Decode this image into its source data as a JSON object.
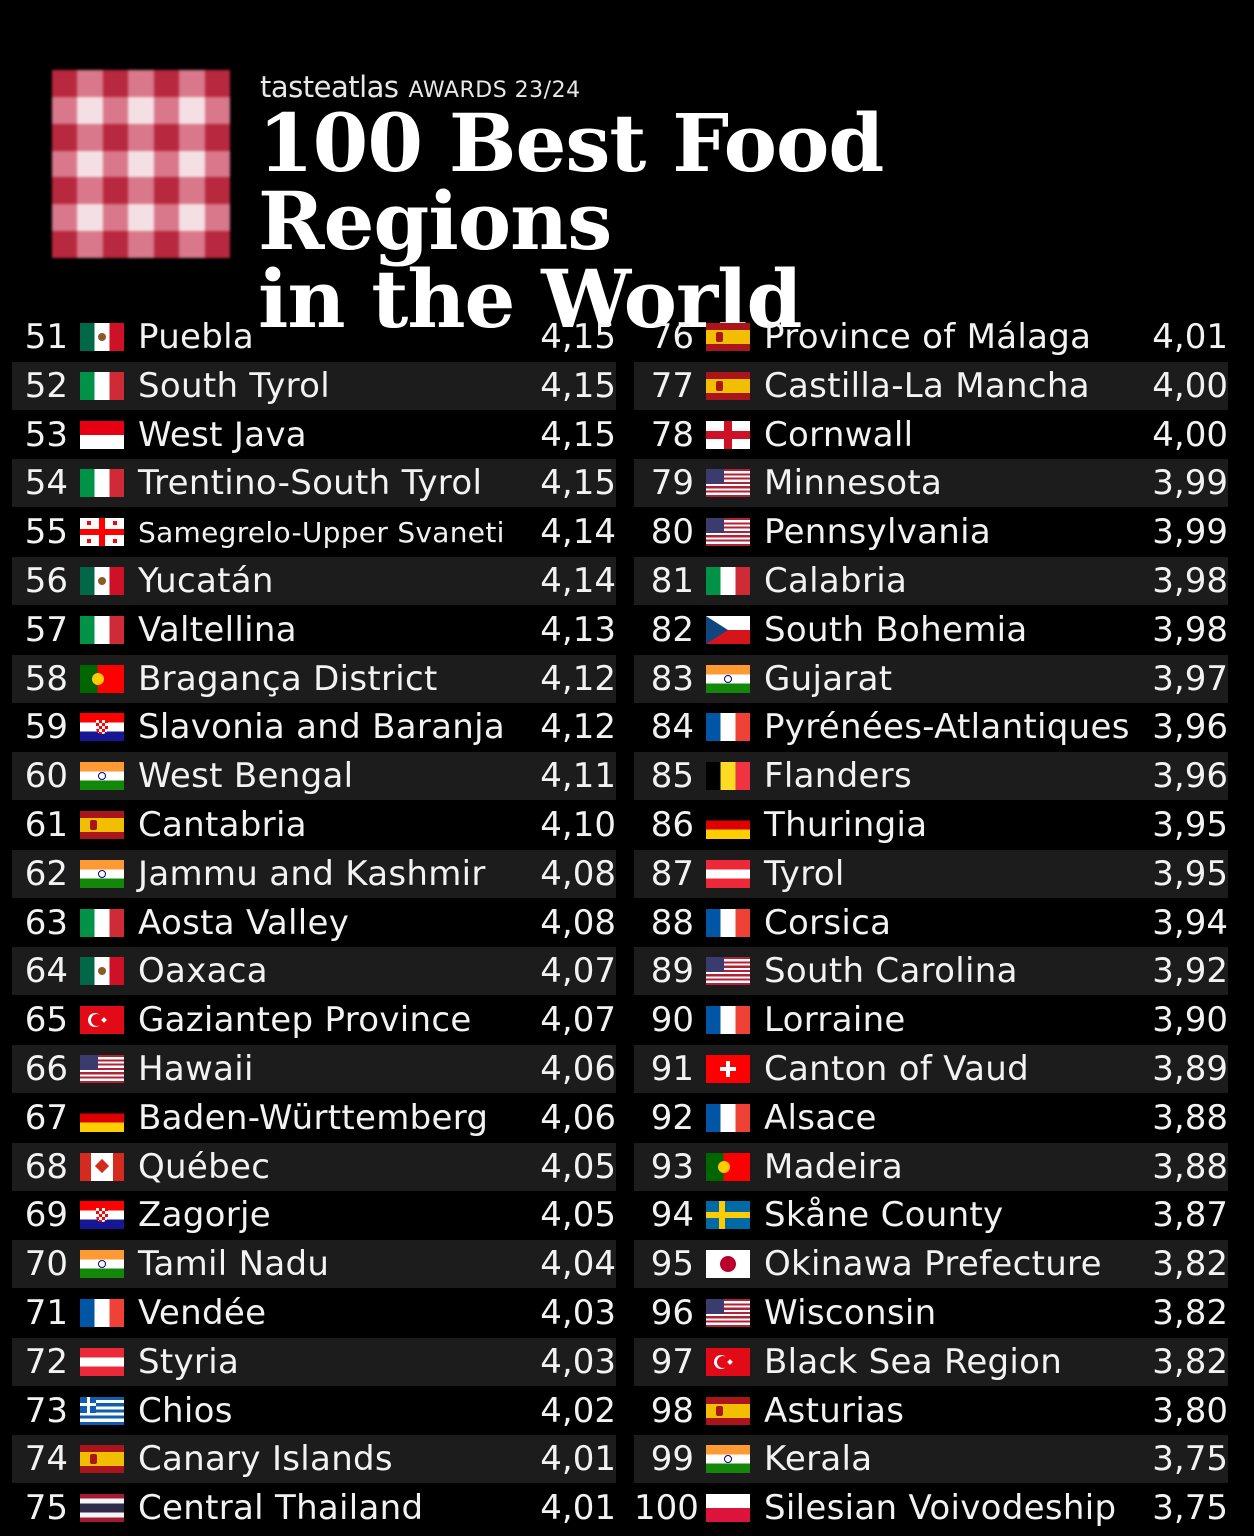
{
  "header": {
    "brand": "tasteatlas",
    "awards": "AWARDS 23/24",
    "title_line1": "100 Best Food Regions",
    "title_line2": "in the World"
  },
  "rankings": [
    {
      "rank": "51",
      "flag": "mexico",
      "region": "Puebla",
      "score": "4,15"
    },
    {
      "rank": "52",
      "flag": "italy",
      "region": "South Tyrol",
      "score": "4,15"
    },
    {
      "rank": "53",
      "flag": "indonesia",
      "region": "West Java",
      "score": "4,15"
    },
    {
      "rank": "54",
      "flag": "italy",
      "region": "Trentino-South Tyrol",
      "score": "4,15"
    },
    {
      "rank": "55",
      "flag": "georgia",
      "region": "Samegrelo-Upper Svaneti",
      "score": "4,14"
    },
    {
      "rank": "56",
      "flag": "mexico",
      "region": "Yucatán",
      "score": "4,14"
    },
    {
      "rank": "57",
      "flag": "italy",
      "region": "Valtellina",
      "score": "4,13"
    },
    {
      "rank": "58",
      "flag": "portugal",
      "region": "Bragança District",
      "score": "4,12"
    },
    {
      "rank": "59",
      "flag": "croatia",
      "region": "Slavonia and Baranja",
      "score": "4,12"
    },
    {
      "rank": "60",
      "flag": "india",
      "region": "West Bengal",
      "score": "4,11"
    },
    {
      "rank": "61",
      "flag": "spain",
      "region": "Cantabria",
      "score": "4,10"
    },
    {
      "rank": "62",
      "flag": "india",
      "region": "Jammu and Kashmir",
      "score": "4,08"
    },
    {
      "rank": "63",
      "flag": "italy",
      "region": "Aosta Valley",
      "score": "4,08"
    },
    {
      "rank": "64",
      "flag": "mexico",
      "region": "Oaxaca",
      "score": "4,07"
    },
    {
      "rank": "65",
      "flag": "turkey",
      "region": "Gaziantep Province",
      "score": "4,07"
    },
    {
      "rank": "66",
      "flag": "usa",
      "region": "Hawaii",
      "score": "4,06"
    },
    {
      "rank": "67",
      "flag": "germany",
      "region": "Baden-Württemberg",
      "score": "4,06"
    },
    {
      "rank": "68",
      "flag": "canada",
      "region": "Québec",
      "score": "4,05"
    },
    {
      "rank": "69",
      "flag": "croatia",
      "region": "Zagorje",
      "score": "4,05"
    },
    {
      "rank": "70",
      "flag": "india",
      "region": "Tamil Nadu",
      "score": "4,04"
    },
    {
      "rank": "71",
      "flag": "france",
      "region": "Vendée",
      "score": "4,03"
    },
    {
      "rank": "72",
      "flag": "austria",
      "region": "Styria",
      "score": "4,03"
    },
    {
      "rank": "73",
      "flag": "greece",
      "region": "Chios",
      "score": "4,02"
    },
    {
      "rank": "74",
      "flag": "spain",
      "region": "Canary Islands",
      "score": "4,01"
    },
    {
      "rank": "75",
      "flag": "thailand",
      "region": "Central Thailand",
      "score": "4,01"
    },
    {
      "rank": "76",
      "flag": "spain",
      "region": "Province of Málaga",
      "score": "4,01"
    },
    {
      "rank": "77",
      "flag": "spain",
      "region": "Castilla-La Mancha",
      "score": "4,00"
    },
    {
      "rank": "78",
      "flag": "england",
      "region": "Cornwall",
      "score": "4,00"
    },
    {
      "rank": "79",
      "flag": "usa",
      "region": "Minnesota",
      "score": "3,99"
    },
    {
      "rank": "80",
      "flag": "usa",
      "region": "Pennsylvania",
      "score": "3,99"
    },
    {
      "rank": "81",
      "flag": "italy",
      "region": "Calabria",
      "score": "3,98"
    },
    {
      "rank": "82",
      "flag": "czechia",
      "region": "South Bohemia",
      "score": "3,98"
    },
    {
      "rank": "83",
      "flag": "india",
      "region": "Gujarat",
      "score": "3,97"
    },
    {
      "rank": "84",
      "flag": "france",
      "region": "Pyrénées-Atlantiques",
      "score": "3,96"
    },
    {
      "rank": "85",
      "flag": "belgium",
      "region": "Flanders",
      "score": "3,96"
    },
    {
      "rank": "86",
      "flag": "germany",
      "region": "Thuringia",
      "score": "3,95"
    },
    {
      "rank": "87",
      "flag": "austria",
      "region": "Tyrol",
      "score": "3,95"
    },
    {
      "rank": "88",
      "flag": "france",
      "region": "Corsica",
      "score": "3,94"
    },
    {
      "rank": "89",
      "flag": "usa",
      "region": "South Carolina",
      "score": "3,92"
    },
    {
      "rank": "90",
      "flag": "france",
      "region": "Lorraine",
      "score": "3,90"
    },
    {
      "rank": "91",
      "flag": "switzerland",
      "region": "Canton of Vaud",
      "score": "3,89"
    },
    {
      "rank": "92",
      "flag": "france",
      "region": "Alsace",
      "score": "3,88"
    },
    {
      "rank": "93",
      "flag": "portugal",
      "region": "Madeira",
      "score": "3,88"
    },
    {
      "rank": "94",
      "flag": "sweden",
      "region": "Skåne County",
      "score": "3,87"
    },
    {
      "rank": "95",
      "flag": "japan",
      "region": "Okinawa Prefecture",
      "score": "3,82"
    },
    {
      "rank": "96",
      "flag": "usa",
      "region": "Wisconsin",
      "score": "3,82"
    },
    {
      "rank": "97",
      "flag": "turkey",
      "region": "Black Sea Region",
      "score": "3,82"
    },
    {
      "rank": "98",
      "flag": "spain",
      "region": "Asturias",
      "score": "3,80"
    },
    {
      "rank": "99",
      "flag": "india",
      "region": "Kerala",
      "score": "3,75"
    },
    {
      "rank": "100",
      "flag": "poland",
      "region": "Silesian Voivodeship",
      "score": "3,75"
    }
  ],
  "colors": {
    "background": "#000000",
    "row_alt": "#1c1c1c",
    "checker_dark": "#b8283e",
    "checker_mid": "#d9788a",
    "checker_light": "#f4e0e4"
  }
}
